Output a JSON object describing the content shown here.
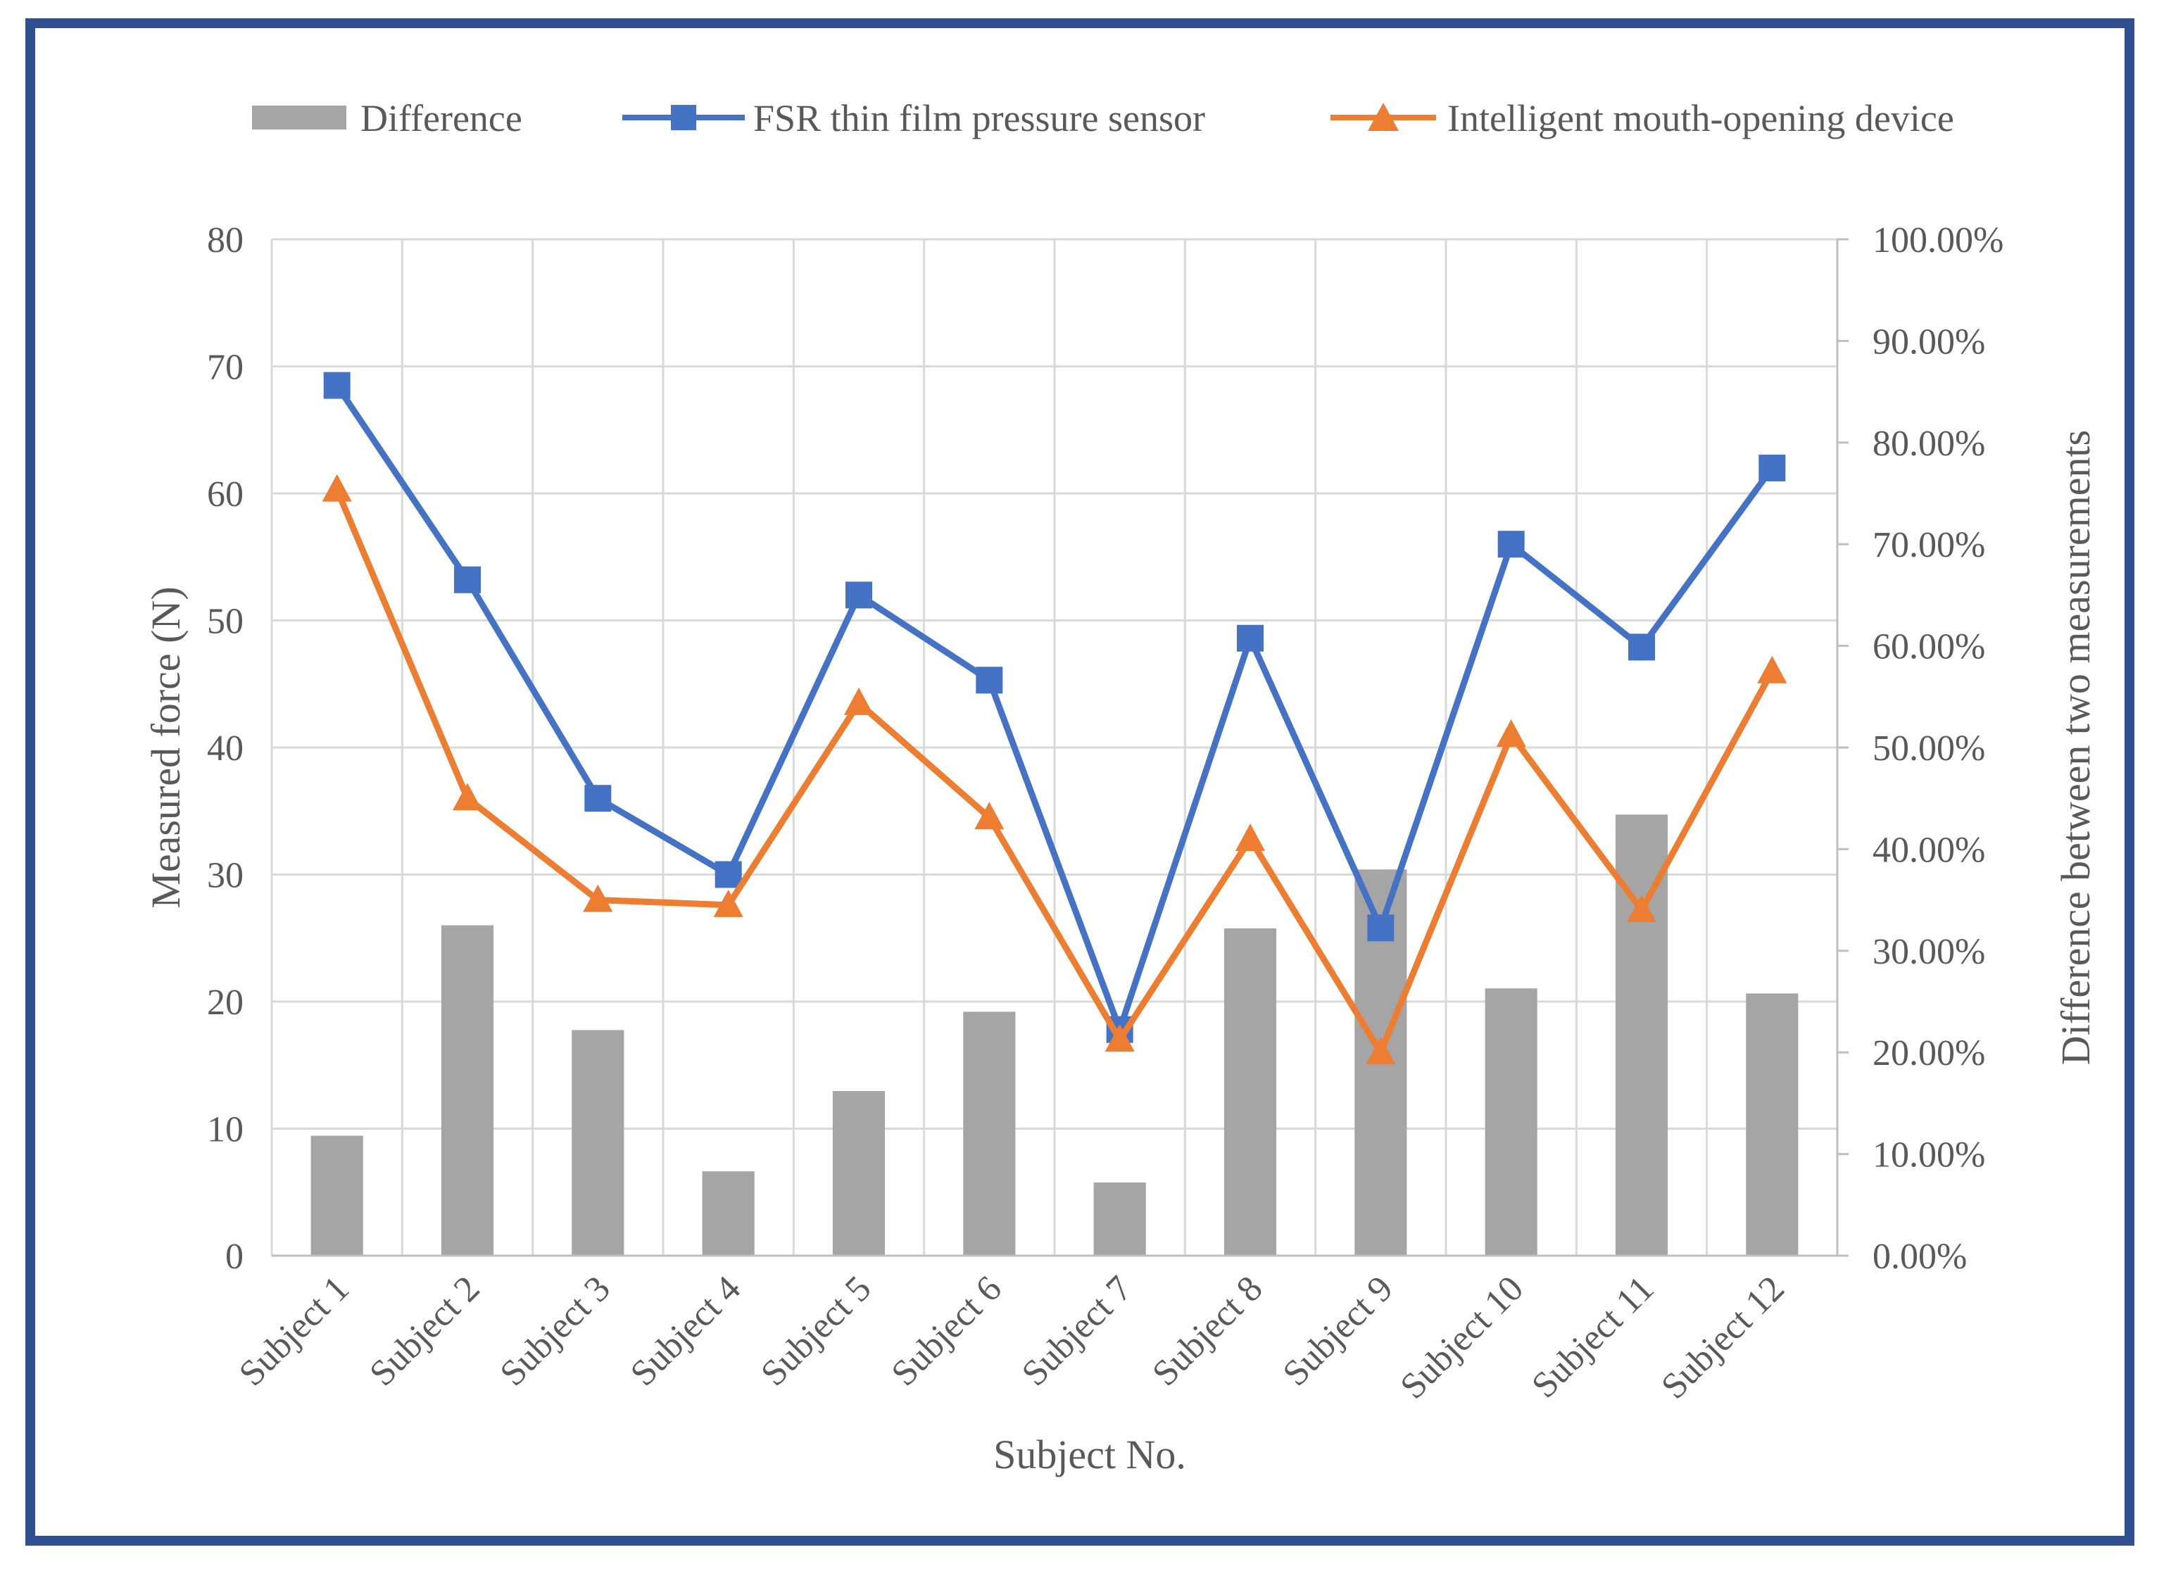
{
  "chart_data": {
    "type": "bar+line",
    "x_axis": {
      "title": "Subject No.",
      "categories": [
        "Subject 1",
        "Subject 2",
        "Subject 3",
        "Subject 4",
        "Subject 5",
        "Subject 6",
        "Subject 7",
        "Subject 8",
        "Subject 9",
        "Subject 10",
        "Subject 11",
        "Subject 12"
      ]
    },
    "y_axis_left": {
      "title": "Measured force (N)",
      "min": 0,
      "max": 80,
      "ticks": [
        "0",
        "10",
        "20",
        "30",
        "40",
        "50",
        "60",
        "70",
        "80"
      ]
    },
    "y_axis_right": {
      "title": "Difference between two measurements",
      "min": 0,
      "max": 1.0,
      "ticks": [
        "0.00%",
        "10.00%",
        "20.00%",
        "30.00%",
        "40.00%",
        "50.00%",
        "60.00%",
        "70.00%",
        "80.00%",
        "90.00%",
        "100.00%"
      ]
    },
    "grid": true,
    "legend": {
      "placement": "top",
      "entries": [
        {
          "name": "Difference",
          "marker": "bar",
          "color": "#a5a5a5"
        },
        {
          "name": "FSR thin film pressure sensor",
          "marker": "square",
          "color": "#4472c4"
        },
        {
          "name": "Intelligent mouth-opening device",
          "marker": "triangle",
          "color": "#ed7d31"
        }
      ]
    },
    "series": [
      {
        "name": "Difference",
        "type": "bar",
        "axis": "right",
        "color": "#a5a5a5",
        "values": [
          0.118,
          0.325,
          0.222,
          0.083,
          0.162,
          0.24,
          0.072,
          0.322,
          0.38,
          0.263,
          0.434,
          0.258
        ]
      },
      {
        "name": "FSR thin film pressure sensor",
        "type": "line",
        "axis": "left",
        "marker": "square",
        "color": "#4472c4",
        "values": [
          68.5,
          53.2,
          36.0,
          30.0,
          52.0,
          45.3,
          17.8,
          48.6,
          25.8,
          56.0,
          47.9,
          62.0
        ]
      },
      {
        "name": "Intelligent mouth-opening device",
        "type": "line",
        "axis": "left",
        "marker": "triangle",
        "color": "#ed7d31",
        "values": [
          60.3,
          36.0,
          28.0,
          27.6,
          43.5,
          34.5,
          17.0,
          32.8,
          16.0,
          41.0,
          27.2,
          46.0
        ]
      }
    ]
  }
}
